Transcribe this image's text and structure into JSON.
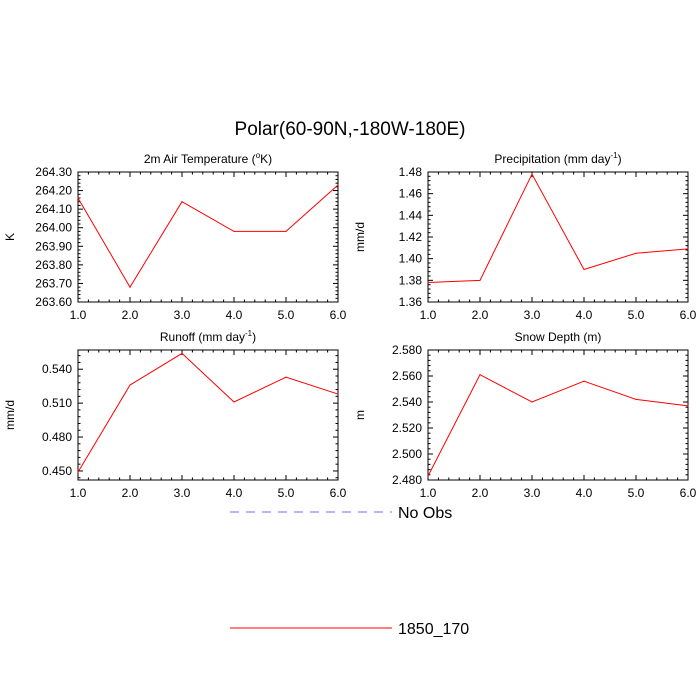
{
  "page_title": "Polar(60-90N,-180W-180E)",
  "chart_data": [
    {
      "type": "line",
      "title": "2m Air Temperature (",
      "title_sup": "o",
      "title_end": "K)",
      "ylabel": "K",
      "x": [
        1.0,
        2.0,
        3.0,
        4.0,
        5.0,
        6.0
      ],
      "xticks": [
        "1.0",
        "2.0",
        "3.0",
        "4.0",
        "5.0",
        "6.0"
      ],
      "xlim": [
        1.0,
        6.0
      ],
      "ylim": [
        263.6,
        264.3
      ],
      "yticks": [
        263.6,
        263.7,
        263.8,
        263.9,
        264.0,
        264.1,
        264.2,
        264.3
      ],
      "yticklabels": [
        "263.60",
        "263.70",
        "263.80",
        "263.90",
        "264.00",
        "264.10",
        "264.20",
        "264.30"
      ],
      "series": [
        {
          "name": "1850_170",
          "values": [
            264.16,
            263.68,
            264.14,
            263.98,
            263.98,
            264.23
          ]
        }
      ]
    },
    {
      "type": "line",
      "title": "Precipitation (mm day",
      "title_sup": "-1",
      "title_end": ")",
      "ylabel": "mm/d",
      "x": [
        1.0,
        2.0,
        3.0,
        4.0,
        5.0,
        6.0
      ],
      "xticks": [
        "1.0",
        "2.0",
        "3.0",
        "4.0",
        "5.0",
        "6.0"
      ],
      "xlim": [
        1.0,
        6.0
      ],
      "ylim": [
        1.36,
        1.48
      ],
      "yticks": [
        1.36,
        1.38,
        1.4,
        1.42,
        1.44,
        1.46,
        1.48
      ],
      "yticklabels": [
        "1.36",
        "1.38",
        "1.40",
        "1.42",
        "1.44",
        "1.46",
        "1.48"
      ],
      "series": [
        {
          "name": "1850_170",
          "values": [
            1.378,
            1.38,
            1.478,
            1.39,
            1.405,
            1.409
          ]
        }
      ]
    },
    {
      "type": "line",
      "title": "Runoff (mm day",
      "title_sup": "-1",
      "title_end": ")",
      "ylabel": "mm/d",
      "x": [
        1.0,
        2.0,
        3.0,
        4.0,
        5.0,
        6.0
      ],
      "xticks": [
        "1.0",
        "2.0",
        "3.0",
        "4.0",
        "5.0",
        "6.0"
      ],
      "xlim": [
        1.0,
        6.0
      ],
      "ylim": [
        0.442,
        0.557
      ],
      "yticks": [
        0.45,
        0.48,
        0.51,
        0.54
      ],
      "yticklabels": [
        "0.450",
        "0.480",
        "0.510",
        "0.540"
      ],
      "series": [
        {
          "name": "1850_170",
          "values": [
            0.449,
            0.526,
            0.554,
            0.511,
            0.533,
            0.518
          ]
        }
      ]
    },
    {
      "type": "line",
      "title": "Snow Depth (m)",
      "title_sup": "",
      "title_end": "",
      "ylabel": "m",
      "x": [
        1.0,
        2.0,
        3.0,
        4.0,
        5.0,
        6.0
      ],
      "xticks": [
        "1.0",
        "2.0",
        "3.0",
        "4.0",
        "5.0",
        "6.0"
      ],
      "xlim": [
        1.0,
        6.0
      ],
      "ylim": [
        2.48,
        2.58
      ],
      "yticks": [
        2.48,
        2.5,
        2.52,
        2.54,
        2.56,
        2.58
      ],
      "yticklabels": [
        "2.480",
        "2.500",
        "2.520",
        "2.540",
        "2.560",
        "2.580"
      ],
      "series": [
        {
          "name": "1850_170",
          "values": [
            2.483,
            2.561,
            2.54,
            2.556,
            2.542,
            2.537
          ]
        }
      ]
    }
  ],
  "legend": [
    {
      "label": "No Obs",
      "color": "#6b6bf0",
      "style": "dashed"
    },
    {
      "label": "1850_170",
      "color": "#ff0000",
      "style": "solid"
    }
  ],
  "colors": {
    "series": "#ff0000",
    "axis": "#000000"
  }
}
